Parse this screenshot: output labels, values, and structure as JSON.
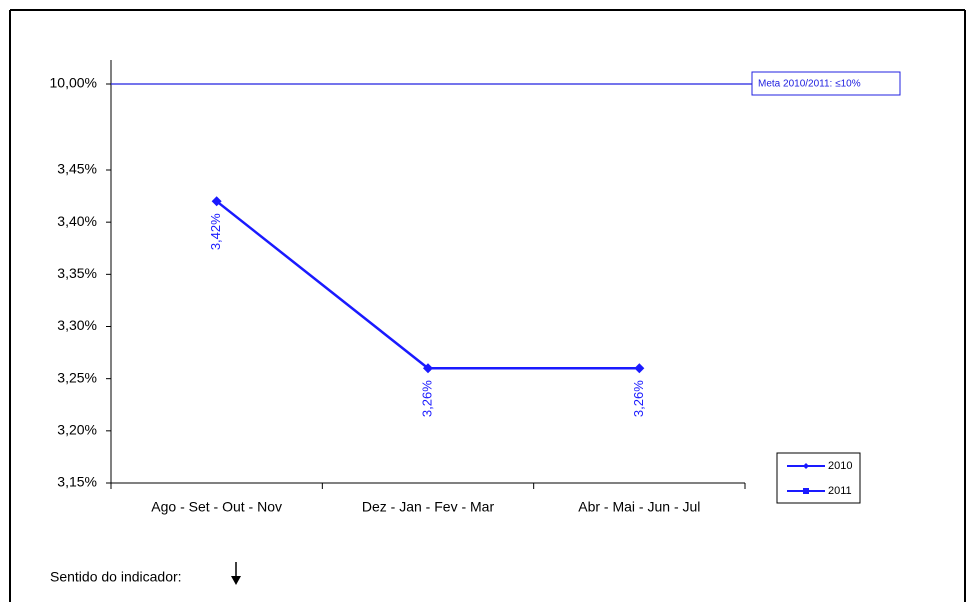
{
  "chart_data": {
    "type": "line",
    "categories": [
      "Ago - Set - Out - Nov",
      "Dez - Jan - Fev - Mar",
      "Abr - Mai - Jun - Jul"
    ],
    "series": [
      {
        "name": "2010",
        "color": "#1a1aff",
        "values": [
          3.42,
          3.26,
          3.26
        ],
        "value_labels": [
          "3,42%",
          "3,26%",
          "3,26%"
        ]
      },
      {
        "name": "2011",
        "color": "#1a1aff",
        "values": [
          null,
          null,
          null
        ]
      }
    ],
    "ylim": [
      3.15,
      10
    ],
    "axis_break": true,
    "yticks": [
      {
        "value": 3.15,
        "label": "3,15%"
      },
      {
        "value": 3.2,
        "label": "3,20%"
      },
      {
        "value": 3.25,
        "label": "3,25%"
      },
      {
        "value": 3.3,
        "label": "3,30%"
      },
      {
        "value": 3.35,
        "label": "3,35%"
      },
      {
        "value": 3.4,
        "label": "3,40%"
      },
      {
        "value": 3.45,
        "label": "3,45%"
      },
      {
        "value": 10,
        "label": "10,00%"
      }
    ],
    "target": {
      "value": 10,
      "label": "Meta 2010/2011: ≤10%",
      "color": "#2020e0"
    },
    "footer": "Sentido do indicador:"
  }
}
